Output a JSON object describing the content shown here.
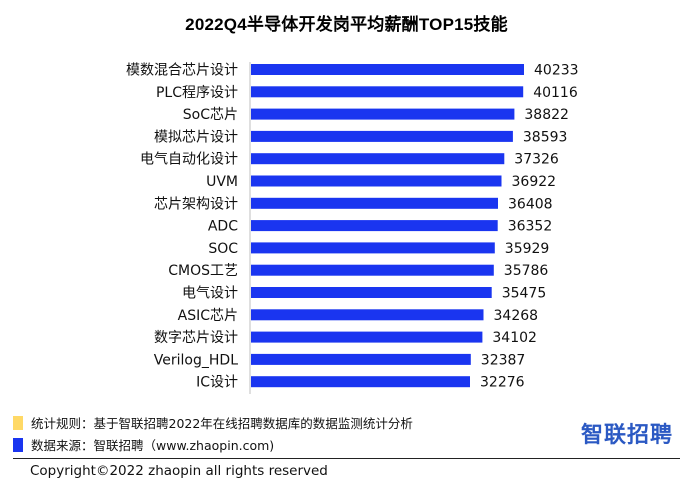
{
  "title": "2022Q4半导体开发岗平均薪酬TOP15技能",
  "colors": {
    "bar": "#1a35f0",
    "note_swatch": "#ffd966",
    "source_swatch": "#1a35f0",
    "logo": "#2b59c3"
  },
  "chart_data": {
    "type": "bar",
    "orientation": "horizontal",
    "title": "2022Q4半导体开发岗平均薪酬TOP15技能",
    "categories": [
      "模数混合芯片设计",
      "PLC程序设计",
      "SoC芯片",
      "模拟芯片设计",
      "电气自动化设计",
      "UVM",
      "芯片架构设计",
      "ADC",
      "SOC",
      "CMOS工艺",
      "电气设计",
      "ASIC芯片",
      "数字芯片设计",
      "Verilog_HDL",
      "IC设计"
    ],
    "values": [
      40233,
      40116,
      38822,
      38593,
      37326,
      36922,
      36408,
      36352,
      35929,
      35786,
      35475,
      34268,
      34102,
      32387,
      32276
    ],
    "data_labels": [
      "40233",
      "40116",
      "38822",
      "38593",
      "37326",
      "36922",
      "36408",
      "36352",
      "35929",
      "35786",
      "35475",
      "34268",
      "34102",
      "32387",
      "32276"
    ],
    "xlim": [
      0,
      40233
    ],
    "grid": false,
    "legend": "none"
  },
  "footer": {
    "note": "统计规则：基于智联招聘2022年在线招聘数据库的数据监测统计分析",
    "source": "数据来源：智联招聘（www.zhaopin.com)",
    "copyright": "Copyright©2022 zhaopin all rights reserved",
    "logo_text": "智联招聘"
  }
}
